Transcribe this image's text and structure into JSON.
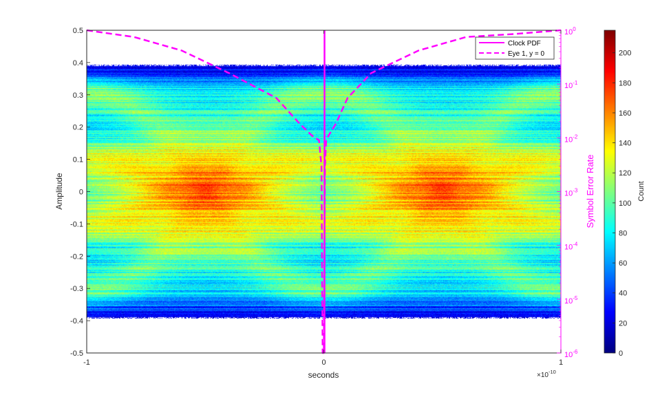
{
  "chart_data": {
    "type": "heatmap",
    "description_kind": "eye-diagram density with overlaid bathtub curve",
    "x": {
      "label": "seconds",
      "lim": [
        -1e-10,
        1e-10
      ],
      "ticks": [
        -1,
        0,
        1
      ],
      "tick_labels": [
        "-1",
        "0",
        "1"
      ],
      "exponent_label": "×10",
      "exponent_value": "-10"
    },
    "y_left": {
      "label": "Amplitude",
      "lim": [
        -0.5,
        0.5
      ],
      "ticks": [
        0.5,
        0.4,
        0.3,
        0.2,
        0.1,
        0,
        -0.1,
        -0.2,
        -0.3,
        -0.4,
        -0.5
      ],
      "tick_labels": [
        "0.5",
        "0.4",
        "0.3",
        "0.2",
        "0.1",
        "0",
        "-0.1",
        "-0.2",
        "-0.3",
        "-0.4",
        "-0.5"
      ]
    },
    "y_right": {
      "label": "Symbol Error Rate",
      "scale": "log",
      "lim": [
        1e-06,
        1
      ],
      "color": "#ff00ff",
      "ticks": [
        1.0,
        0.1,
        0.01,
        0.001,
        0.0001,
        1e-05,
        1e-06
      ],
      "tick_base": [
        "10",
        "10",
        "10",
        "10",
        "10",
        "10",
        "10"
      ],
      "tick_exp": [
        "0",
        "-1",
        "-2",
        "-3",
        "-4",
        "-5",
        "-6"
      ]
    },
    "colorbar": {
      "label": "Count",
      "colormap": "jet",
      "lim": [
        0,
        215
      ],
      "ticks": [
        0,
        20,
        40,
        60,
        80,
        100,
        120,
        140,
        160,
        180,
        200
      ],
      "tick_labels": [
        "0",
        "20",
        "40",
        "60",
        "80",
        "100",
        "120",
        "140",
        "160",
        "180",
        "200"
      ]
    },
    "heatmap": {
      "signal_levels": [
        -0.3,
        -0.1,
        0.1,
        0.3
      ],
      "amplitude_extent": [
        -0.39,
        0.39
      ],
      "unit_intervals": 2,
      "eye_centers_x": [
        -5e-11,
        5e-11
      ],
      "peak_count": 215,
      "crossing_amplitude": 0
    },
    "series": [
      {
        "name": "Clock PDF",
        "style": "solid",
        "color": "#ff00ff",
        "x": [
          3e-13,
          3e-13
        ],
        "y_axis": "left",
        "y": [
          -0.5,
          0.5
        ]
      },
      {
        "name": "Eye 1, y = 0",
        "style": "dashed",
        "color": "#ff00ff",
        "y_axis": "right",
        "x": [
          -1e-10,
          -8e-11,
          -6e-11,
          -4e-11,
          -2e-11,
          -1e-11,
          -5e-12,
          -2e-12,
          -1e-12,
          -5e-13,
          0.0,
          5e-13,
          1e-12,
          2e-12,
          5e-12,
          1e-11,
          2e-11,
          4e-11,
          6e-11,
          8e-11,
          1e-10
        ],
        "y": [
          1.0,
          0.75,
          0.42,
          0.16,
          0.055,
          0.018,
          0.011,
          0.009,
          0.003,
          1e-06,
          1e-06,
          0.003,
          0.009,
          0.011,
          0.018,
          0.055,
          0.16,
          0.42,
          0.75,
          0.85,
          1.0
        ]
      }
    ],
    "legend": {
      "location": "top-right",
      "entries": [
        "Clock PDF",
        "Eye 1, y = 0"
      ]
    }
  }
}
